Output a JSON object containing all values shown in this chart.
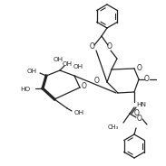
{
  "bg_color": "#ffffff",
  "line_color": "#222222",
  "line_width": 0.9,
  "figsize": [
    1.83,
    1.84
  ],
  "dpi": 100,
  "xlim": [
    0,
    183
  ],
  "ylim": [
    0,
    184
  ]
}
